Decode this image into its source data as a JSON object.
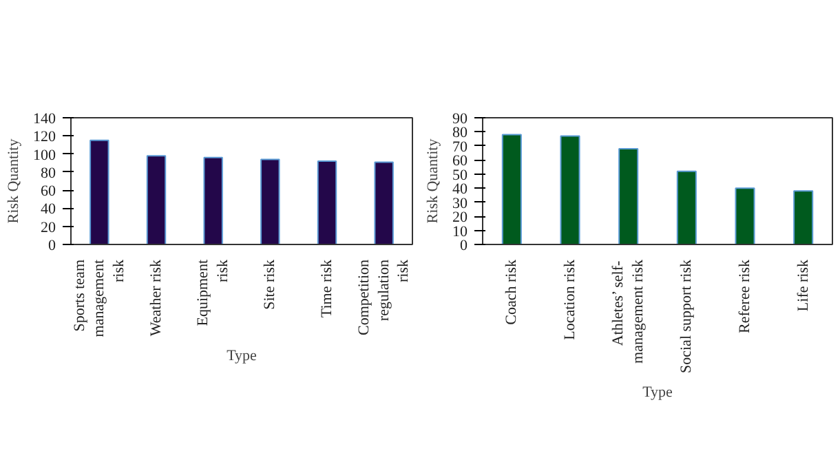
{
  "chart_data": [
    {
      "type": "bar",
      "xlabel": "Type",
      "ylabel": "Risk Quantity",
      "categories": [
        "Sports team management risk",
        "Weather risk",
        "Equipment risk",
        "Site risk",
        "Time risk",
        "Competition regulation risk"
      ],
      "values": [
        115,
        98,
        96,
        94,
        92,
        91
      ],
      "color": "#23074a",
      "ylim": [
        0,
        140
      ],
      "yticks": [
        0,
        20,
        40,
        60,
        80,
        100,
        120,
        140
      ],
      "grid": false
    },
    {
      "type": "bar",
      "xlabel": "Type",
      "ylabel": "Risk Quantity",
      "categories": [
        "Coach risk",
        "Location risk",
        "Athletes’ self-management risk",
        "Social support risk",
        "Referee risk",
        "Life risk"
      ],
      "values": [
        78,
        77,
        68,
        52,
        40,
        38
      ],
      "color": "#005a1e",
      "ylim": [
        0,
        90
      ],
      "yticks": [
        0,
        10,
        20,
        30,
        40,
        50,
        60,
        70,
        80,
        90
      ],
      "grid": false
    }
  ]
}
